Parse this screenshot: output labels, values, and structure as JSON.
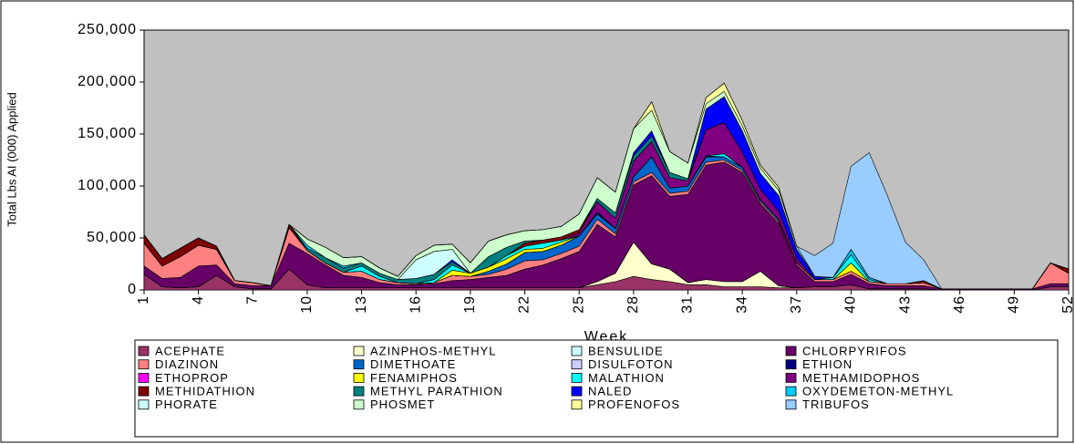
{
  "chart_data": {
    "type": "stacked_area",
    "y_label": "Total Lbs AI (000) Applied",
    "x_label": "Week",
    "x": [
      1,
      2,
      3,
      4,
      5,
      6,
      7,
      8,
      9,
      10,
      11,
      12,
      13,
      14,
      15,
      16,
      17,
      18,
      19,
      20,
      21,
      22,
      23,
      24,
      25,
      26,
      27,
      28,
      29,
      30,
      31,
      32,
      33,
      34,
      35,
      36,
      37,
      38,
      39,
      40,
      41,
      42,
      43,
      44,
      45,
      46,
      47,
      48,
      49,
      50,
      51,
      52
    ],
    "xlim": [
      1,
      52
    ],
    "xticks": [
      1,
      4,
      7,
      10,
      13,
      16,
      19,
      22,
      25,
      28,
      31,
      34,
      37,
      40,
      43,
      46,
      49,
      52
    ],
    "ylim": [
      0,
      250000
    ],
    "yticks": [
      0,
      {
        "value": 50000,
        "label": "50,000"
      },
      {
        "value": 100000,
        "label": "100,000"
      },
      {
        "value": 150000,
        "label": "150,000"
      },
      {
        "value": 200000,
        "label": "200,000"
      },
      {
        "value": 250000,
        "label": "250,000"
      }
    ],
    "series": [
      {
        "name": "ACEPHATE",
        "color": "#993366",
        "values": [
          15000,
          3000,
          2000,
          3000,
          14000,
          3000,
          1000,
          1000,
          20000,
          5000,
          2000,
          2000,
          2000,
          2000,
          2000,
          2000,
          2000,
          2000,
          2000,
          2000,
          2000,
          2000,
          2000,
          2000,
          2000,
          5000,
          8000,
          13000,
          10000,
          8000,
          5000,
          5000,
          3000,
          3000,
          3000,
          2000,
          2000,
          3000,
          3000,
          5000,
          1000,
          1000,
          1000,
          1000,
          0,
          0,
          0,
          0,
          0,
          0,
          3000,
          3000
        ]
      },
      {
        "name": "AZINPHOS-METHYL",
        "color": "#FFFFCC",
        "values": [
          0,
          0,
          0,
          0,
          0,
          0,
          0,
          0,
          0,
          0,
          0,
          0,
          0,
          0,
          0,
          0,
          0,
          0,
          0,
          0,
          0,
          0,
          0,
          0,
          0,
          3000,
          8000,
          33000,
          15000,
          12000,
          2000,
          5000,
          5000,
          5000,
          15000,
          2000,
          0,
          0,
          0,
          0,
          0,
          0,
          0,
          0,
          0,
          0,
          0,
          0,
          0,
          0,
          0,
          0
        ]
      },
      {
        "name": "BENSULIDE",
        "color": "#CCFFFF",
        "values": [
          0,
          0,
          0,
          0,
          0,
          0,
          0,
          0,
          0,
          0,
          0,
          0,
          0,
          0,
          0,
          0,
          0,
          0,
          0,
          0,
          0,
          0,
          0,
          0,
          0,
          0,
          0,
          0,
          0,
          0,
          0,
          0,
          0,
          0,
          0,
          0,
          0,
          0,
          0,
          0,
          0,
          0,
          0,
          0,
          0,
          0,
          0,
          0,
          0,
          0,
          0,
          0
        ]
      },
      {
        "name": "CHLORPYRIFOS",
        "color": "#660066",
        "values": [
          8000,
          8000,
          10000,
          20000,
          10000,
          3000,
          3000,
          3000,
          25000,
          30000,
          22000,
          12000,
          10000,
          5000,
          3000,
          3000,
          4000,
          7000,
          8000,
          10000,
          12000,
          18000,
          22000,
          28000,
          35000,
          55000,
          35000,
          55000,
          85000,
          70000,
          85000,
          110000,
          115000,
          105000,
          65000,
          60000,
          22000,
          5000,
          5000,
          10000,
          5000,
          3000,
          3000,
          3000,
          1000,
          1000,
          1000,
          1000,
          1000,
          1000,
          3000,
          3000
        ]
      },
      {
        "name": "DIAZINON",
        "color": "#FF8080",
        "values": [
          22000,
          12000,
          20000,
          20000,
          15000,
          3000,
          3000,
          0,
          15000,
          3000,
          2000,
          3000,
          6000,
          3000,
          2000,
          1000,
          1000,
          5000,
          3000,
          3000,
          6000,
          8000,
          5000,
          5000,
          5000,
          5000,
          3000,
          3000,
          3000,
          3000,
          3000,
          3000,
          2000,
          2000,
          2000,
          2000,
          2000,
          2000,
          2000,
          3000,
          2000,
          2000,
          2000,
          3000,
          0,
          0,
          0,
          0,
          0,
          0,
          20000,
          10000
        ]
      },
      {
        "name": "DIMETHOATE",
        "color": "#0066CC",
        "values": [
          0,
          0,
          0,
          0,
          0,
          0,
          0,
          0,
          0,
          0,
          0,
          0,
          0,
          0,
          0,
          0,
          0,
          0,
          0,
          3000,
          5000,
          8000,
          8000,
          8000,
          10000,
          5000,
          5000,
          5000,
          15000,
          5000,
          5000,
          5000,
          3000,
          3000,
          2000,
          2000,
          0,
          0,
          0,
          0,
          0,
          0,
          0,
          0,
          0,
          0,
          0,
          0,
          0,
          0,
          0,
          0
        ]
      },
      {
        "name": "DISULFOTON",
        "color": "#CCCCFF",
        "values": [
          0,
          0,
          0,
          0,
          0,
          0,
          0,
          0,
          0,
          0,
          0,
          0,
          0,
          0,
          0,
          0,
          0,
          0,
          0,
          0,
          0,
          0,
          0,
          0,
          0,
          0,
          0,
          0,
          0,
          0,
          0,
          0,
          0,
          0,
          0,
          0,
          0,
          0,
          0,
          0,
          0,
          0,
          0,
          0,
          0,
          0,
          0,
          0,
          0,
          0,
          0,
          0
        ]
      },
      {
        "name": "ETHION",
        "color": "#000080",
        "values": [
          0,
          0,
          0,
          0,
          0,
          0,
          0,
          0,
          0,
          0,
          0,
          0,
          0,
          0,
          0,
          0,
          0,
          0,
          0,
          0,
          0,
          0,
          0,
          0,
          0,
          2000,
          0,
          0,
          0,
          0,
          0,
          1000,
          0,
          0,
          0,
          0,
          0,
          0,
          0,
          0,
          0,
          0,
          0,
          0,
          0,
          0,
          0,
          0,
          0,
          0,
          0,
          0
        ]
      },
      {
        "name": "ETHOPROP",
        "color": "#FF00FF",
        "values": [
          0,
          0,
          0,
          0,
          0,
          0,
          0,
          0,
          0,
          0,
          0,
          0,
          0,
          0,
          0,
          0,
          0,
          0,
          0,
          0,
          0,
          0,
          0,
          0,
          0,
          0,
          0,
          0,
          0,
          0,
          0,
          0,
          0,
          0,
          0,
          0,
          0,
          0,
          0,
          0,
          0,
          0,
          0,
          0,
          0,
          0,
          0,
          0,
          0,
          0,
          0,
          0
        ]
      },
      {
        "name": "FENAMIPHOS",
        "color": "#FFFF00",
        "values": [
          0,
          0,
          0,
          0,
          0,
          0,
          0,
          0,
          0,
          0,
          0,
          0,
          0,
          0,
          0,
          0,
          0,
          5000,
          3000,
          4000,
          5000,
          3000,
          3000,
          3000,
          0,
          0,
          0,
          0,
          0,
          0,
          0,
          0,
          0,
          0,
          0,
          0,
          0,
          0,
          0,
          8000,
          0,
          0,
          0,
          0,
          0,
          0,
          0,
          0,
          0,
          0,
          0,
          0
        ]
      },
      {
        "name": "MALATHION",
        "color": "#00FFFF",
        "values": [
          0,
          0,
          0,
          0,
          0,
          0,
          0,
          0,
          0,
          0,
          0,
          0,
          5000,
          3000,
          0,
          0,
          3000,
          5000,
          0,
          0,
          3000,
          3000,
          5000,
          2000,
          0,
          0,
          0,
          0,
          0,
          0,
          0,
          0,
          3000,
          0,
          0,
          0,
          0,
          0,
          2000,
          8000,
          2000,
          0,
          0,
          0,
          0,
          0,
          0,
          0,
          0,
          0,
          0,
          0
        ]
      },
      {
        "name": "METHAMIDOPHOS",
        "color": "#800080",
        "values": [
          0,
          0,
          0,
          0,
          0,
          0,
          0,
          0,
          0,
          0,
          0,
          0,
          0,
          0,
          0,
          0,
          0,
          0,
          0,
          0,
          0,
          0,
          0,
          0,
          3000,
          10000,
          10000,
          15000,
          15000,
          10000,
          5000,
          25000,
          30000,
          15000,
          10000,
          8000,
          5000,
          0,
          0,
          0,
          0,
          0,
          0,
          0,
          0,
          0,
          0,
          0,
          0,
          0,
          0,
          0
        ]
      },
      {
        "name": "METHIDATHION",
        "color": "#800000",
        "values": [
          8000,
          7000,
          8000,
          7000,
          3000,
          0,
          0,
          0,
          3000,
          0,
          0,
          0,
          0,
          0,
          0,
          0,
          0,
          0,
          0,
          0,
          0,
          3000,
          3000,
          3000,
          3000,
          0,
          0,
          0,
          0,
          0,
          0,
          0,
          0,
          0,
          0,
          0,
          0,
          0,
          0,
          0,
          0,
          0,
          0,
          2000,
          0,
          0,
          0,
          0,
          0,
          0,
          0,
          4000
        ]
      },
      {
        "name": "METHYL PARATHION",
        "color": "#008080",
        "values": [
          0,
          0,
          0,
          0,
          0,
          0,
          0,
          0,
          0,
          2000,
          5000,
          4000,
          3000,
          3000,
          3000,
          5000,
          5000,
          3000,
          0,
          10000,
          8000,
          2000,
          0,
          0,
          0,
          3000,
          5000,
          5000,
          5000,
          5000,
          2000,
          0,
          0,
          0,
          0,
          0,
          0,
          0,
          0,
          0,
          0,
          0,
          0,
          0,
          0,
          0,
          0,
          0,
          0,
          0,
          0,
          0
        ]
      },
      {
        "name": "NALED",
        "color": "#0000FF",
        "values": [
          0,
          0,
          0,
          0,
          0,
          0,
          0,
          0,
          0,
          0,
          0,
          0,
          0,
          0,
          0,
          0,
          0,
          2000,
          0,
          0,
          0,
          0,
          0,
          0,
          0,
          0,
          0,
          3000,
          5000,
          0,
          0,
          20000,
          25000,
          20000,
          15000,
          15000,
          8000,
          3000,
          0,
          0,
          0,
          0,
          0,
          0,
          0,
          0,
          0,
          0,
          0,
          0,
          0,
          0
        ]
      },
      {
        "name": "OXYDEMETON-METHYL",
        "color": "#00CCFF",
        "values": [
          0,
          0,
          0,
          0,
          0,
          0,
          0,
          0,
          0,
          3000,
          0,
          2000,
          0,
          0,
          0,
          0,
          0,
          0,
          0,
          0,
          0,
          0,
          0,
          0,
          0,
          0,
          0,
          0,
          0,
          0,
          0,
          0,
          0,
          0,
          0,
          0,
          0,
          0,
          0,
          5000,
          2000,
          0,
          0,
          0,
          0,
          0,
          0,
          0,
          0,
          0,
          0,
          0
        ]
      },
      {
        "name": "PHORATE",
        "color": "#CCFFFF",
        "values": [
          0,
          0,
          0,
          0,
          0,
          0,
          0,
          0,
          0,
          0,
          0,
          0,
          0,
          0,
          0,
          18000,
          22000,
          10000,
          0,
          0,
          0,
          0,
          0,
          0,
          0,
          0,
          0,
          0,
          0,
          0,
          0,
          0,
          0,
          0,
          0,
          0,
          0,
          0,
          0,
          0,
          0,
          0,
          0,
          0,
          0,
          0,
          0,
          0,
          0,
          0,
          0,
          0
        ]
      },
      {
        "name": "PHOSMET",
        "color": "#CCFFCC",
        "values": [
          0,
          0,
          0,
          0,
          0,
          0,
          0,
          0,
          0,
          6000,
          10000,
          8000,
          6000,
          5000,
          3000,
          4000,
          6000,
          5000,
          10000,
          15000,
          12000,
          10000,
          10000,
          10000,
          15000,
          20000,
          20000,
          23000,
          20000,
          20000,
          15000,
          5000,
          5000,
          5000,
          5000,
          5000,
          3000,
          0,
          0,
          0,
          0,
          0,
          0,
          0,
          0,
          0,
          0,
          0,
          0,
          0,
          0,
          0
        ]
      },
      {
        "name": "PROFENOFOS",
        "color": "#FFFF99",
        "values": [
          0,
          0,
          0,
          0,
          0,
          0,
          0,
          0,
          0,
          0,
          0,
          0,
          0,
          0,
          0,
          0,
          0,
          0,
          0,
          0,
          0,
          0,
          0,
          0,
          0,
          0,
          0,
          0,
          8000,
          0,
          0,
          6000,
          8000,
          5000,
          3000,
          3000,
          0,
          0,
          0,
          0,
          0,
          0,
          0,
          0,
          0,
          0,
          0,
          0,
          0,
          0,
          0,
          0
        ]
      },
      {
        "name": "TRIBUFOS",
        "color": "#99CCFF",
        "values": [
          0,
          0,
          0,
          0,
          0,
          0,
          0,
          0,
          0,
          0,
          0,
          0,
          0,
          0,
          0,
          0,
          0,
          0,
          0,
          0,
          0,
          0,
          0,
          0,
          0,
          0,
          0,
          0,
          0,
          0,
          0,
          0,
          0,
          0,
          0,
          0,
          0,
          20000,
          33000,
          80000,
          120000,
          85000,
          40000,
          20000,
          0,
          0,
          0,
          0,
          0,
          0,
          0,
          0
        ]
      }
    ]
  }
}
